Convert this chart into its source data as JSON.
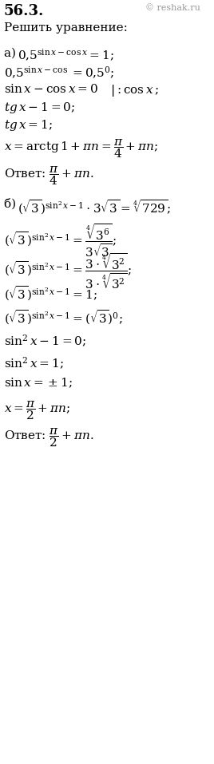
{
  "title": "56.3.",
  "copyright": "© reshak.ru",
  "instruction": "Решить уравнение:",
  "background_color": "#ffffff",
  "text_color": "#000000",
  "figsize": [
    2.68,
    9.57
  ],
  "dpi": 100
}
